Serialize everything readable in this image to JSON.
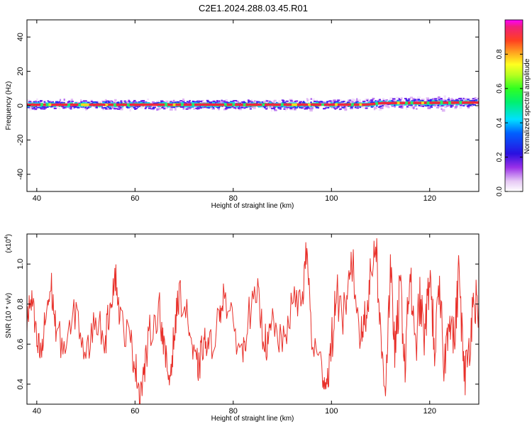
{
  "title": "C2E1.2024.288.03.45.R01",
  "colors": {
    "snr_line": "#e8302a",
    "axis": "#000000",
    "background": "#ffffff"
  },
  "chart_data": [
    {
      "type": "heatmap",
      "title": "C2E1.2024.288.03.45.R01",
      "xlabel": "Height of straight line (km)",
      "ylabel": "Frequency (Hz)",
      "xlim": [
        38,
        130
      ],
      "ylim": [
        -50,
        50
      ],
      "x_ticks": [
        40,
        60,
        80,
        100,
        120
      ],
      "y_ticks": [
        40,
        20,
        0,
        -20,
        -40
      ],
      "grid": false,
      "colorbar": {
        "label": "Normalized spectral amplitude",
        "range": [
          0,
          1
        ],
        "ticks": [
          "0.0",
          "0.2",
          "0.4",
          "0.6",
          "0.8"
        ],
        "colormap": "rainbow (white-purple-blue-cyan-green-yellow-red-magenta)"
      },
      "band": {
        "description": "narrow high-amplitude band near 0 Hz",
        "centerline": [
          {
            "x": 38,
            "y": 0.5
          },
          {
            "x": 107,
            "y": 0.6
          },
          {
            "x": 110,
            "y": 1.5
          },
          {
            "x": 130,
            "y": 1.8
          }
        ],
        "core_halfwidth_hz": 1.0,
        "spread_halfwidth_hz": 4.0
      }
    },
    {
      "type": "line",
      "xlabel": "Height of straight line (km)",
      "ylabel": "SNR (10 * v/v)",
      "y_scale_label": "(x10",
      "y_scale_exp": "4",
      "y_scale_close": ")",
      "xlim": [
        38,
        130
      ],
      "ylim": [
        0.3,
        1.15
      ],
      "x_ticks": [
        40,
        60,
        80,
        100,
        120
      ],
      "y_ticks": [
        "0.4",
        "0.6",
        "0.8",
        "1.0"
      ],
      "y_tick_values": [
        0.4,
        0.6,
        0.8,
        1.0
      ],
      "grid": false,
      "series": [
        {
          "anchors": [
            {
              "x": 38,
              "y": 0.72
            },
            {
              "x": 39,
              "y": 0.82
            },
            {
              "x": 40,
              "y": 0.6
            },
            {
              "x": 41,
              "y": 0.55
            },
            {
              "x": 42,
              "y": 0.78
            },
            {
              "x": 43,
              "y": 0.88
            },
            {
              "x": 44,
              "y": 0.65
            },
            {
              "x": 46,
              "y": 0.58
            },
            {
              "x": 48,
              "y": 0.78
            },
            {
              "x": 50,
              "y": 0.52
            },
            {
              "x": 52,
              "y": 0.74
            },
            {
              "x": 54,
              "y": 0.62
            },
            {
              "x": 55,
              "y": 0.82
            },
            {
              "x": 56,
              "y": 0.95
            },
            {
              "x": 57,
              "y": 0.72
            },
            {
              "x": 59,
              "y": 0.62
            },
            {
              "x": 60,
              "y": 0.5
            },
            {
              "x": 61,
              "y": 0.36
            },
            {
              "x": 62,
              "y": 0.48
            },
            {
              "x": 63,
              "y": 0.66
            },
            {
              "x": 65,
              "y": 0.78
            },
            {
              "x": 66,
              "y": 0.55
            },
            {
              "x": 67,
              "y": 0.42
            },
            {
              "x": 68,
              "y": 0.65
            },
            {
              "x": 69,
              "y": 0.86
            },
            {
              "x": 71,
              "y": 0.7
            },
            {
              "x": 72,
              "y": 0.52
            },
            {
              "x": 73,
              "y": 0.48
            },
            {
              "x": 74,
              "y": 0.62
            },
            {
              "x": 75,
              "y": 0.56
            },
            {
              "x": 77,
              "y": 0.72
            },
            {
              "x": 78,
              "y": 0.86
            },
            {
              "x": 80,
              "y": 0.68
            },
            {
              "x": 82,
              "y": 0.55
            },
            {
              "x": 83,
              "y": 0.74
            },
            {
              "x": 85,
              "y": 0.84
            },
            {
              "x": 86,
              "y": 0.66
            },
            {
              "x": 87,
              "y": 0.58
            },
            {
              "x": 88,
              "y": 0.72
            },
            {
              "x": 90,
              "y": 0.58
            },
            {
              "x": 92,
              "y": 0.8
            },
            {
              "x": 94,
              "y": 0.82
            },
            {
              "x": 95,
              "y": 1.08
            },
            {
              "x": 96,
              "y": 0.62
            },
            {
              "x": 98,
              "y": 0.48
            },
            {
              "x": 99,
              "y": 0.4
            },
            {
              "x": 100,
              "y": 0.58
            },
            {
              "x": 101,
              "y": 0.86
            },
            {
              "x": 103,
              "y": 0.7
            },
            {
              "x": 104,
              "y": 1.05
            },
            {
              "x": 106,
              "y": 0.62
            },
            {
              "x": 107,
              "y": 0.78
            },
            {
              "x": 108,
              "y": 0.92
            },
            {
              "x": 109,
              "y": 1.15
            },
            {
              "x": 110,
              "y": 0.62
            },
            {
              "x": 111,
              "y": 0.4
            },
            {
              "x": 112,
              "y": 0.95
            },
            {
              "x": 113,
              "y": 0.55
            },
            {
              "x": 114,
              "y": 0.9
            },
            {
              "x": 115,
              "y": 0.5
            },
            {
              "x": 116,
              "y": 0.98
            },
            {
              "x": 117,
              "y": 0.55
            },
            {
              "x": 118,
              "y": 0.82
            },
            {
              "x": 119,
              "y": 0.62
            },
            {
              "x": 120,
              "y": 0.96
            },
            {
              "x": 121,
              "y": 0.58
            },
            {
              "x": 122,
              "y": 0.85
            },
            {
              "x": 123,
              "y": 0.48
            },
            {
              "x": 124,
              "y": 0.78
            },
            {
              "x": 125,
              "y": 0.6
            },
            {
              "x": 126,
              "y": 0.98
            },
            {
              "x": 127,
              "y": 0.42
            },
            {
              "x": 128,
              "y": 0.58
            },
            {
              "x": 129,
              "y": 0.84
            },
            {
              "x": 130,
              "y": 0.8
            }
          ],
          "jitter": 0.09,
          "samples_per_km": 9
        }
      ]
    }
  ]
}
